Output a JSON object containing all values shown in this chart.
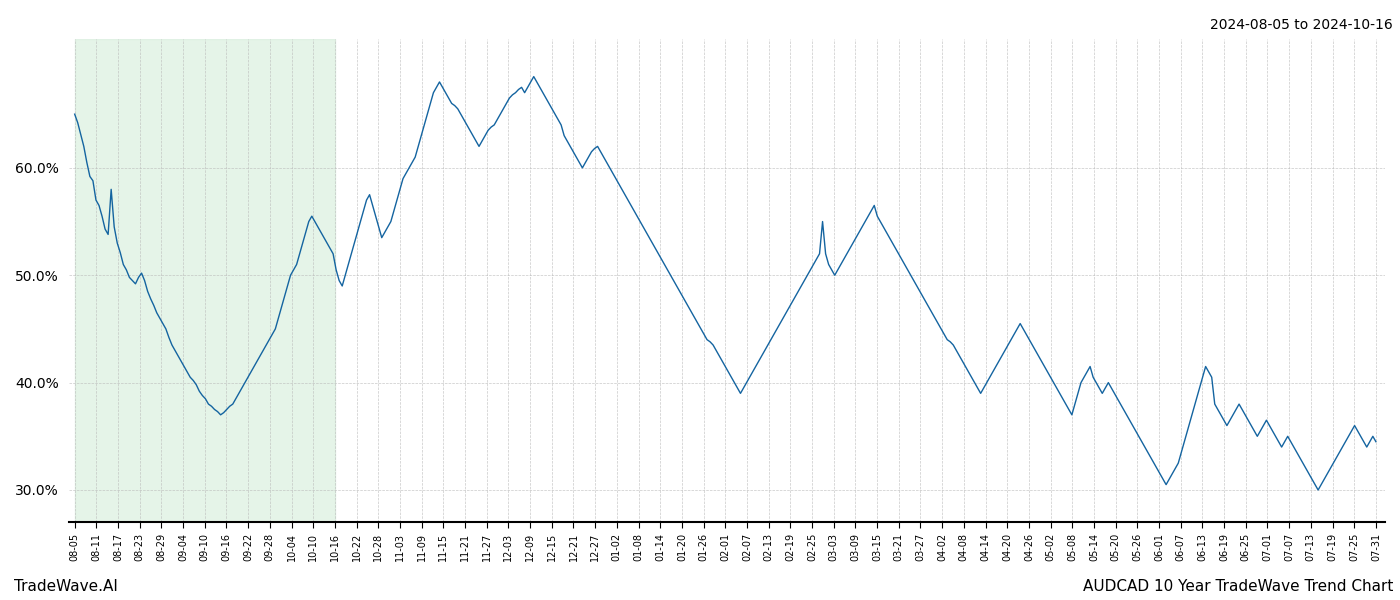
{
  "title_top_right": "2024-08-05 to 2024-10-16",
  "title_bottom_right": "AUDCAD 10 Year TradeWave Trend Chart",
  "title_bottom_left": "TradeWave.AI",
  "line_color": "#1464a0",
  "shade_color": "#d4edda",
  "shade_alpha": 0.6,
  "ylim": [
    27,
    72
  ],
  "yticks": [
    30.0,
    40.0,
    50.0,
    60.0
  ],
  "x_tick_labels": [
    "08-05",
    "08-11",
    "08-17",
    "08-23",
    "08-29",
    "09-04",
    "09-10",
    "09-16",
    "09-22",
    "09-28",
    "10-04",
    "10-10",
    "10-16",
    "10-22",
    "10-28",
    "11-03",
    "11-09",
    "11-15",
    "11-21",
    "11-27",
    "12-03",
    "12-09",
    "12-15",
    "12-21",
    "12-27",
    "01-02",
    "01-08",
    "01-14",
    "01-20",
    "01-26",
    "02-01",
    "02-07",
    "02-13",
    "02-19",
    "02-25",
    "03-03",
    "03-09",
    "03-15",
    "03-21",
    "03-27",
    "04-02",
    "04-08",
    "04-14",
    "04-20",
    "04-26",
    "05-02",
    "05-08",
    "05-14",
    "05-20",
    "05-26",
    "06-01",
    "06-07",
    "06-13",
    "06-19",
    "06-25",
    "07-01",
    "07-07",
    "07-13",
    "07-19",
    "07-25",
    "07-31"
  ],
  "shade_start_label": "08-05",
  "shade_end_label": "10-16",
  "values": [
    65.0,
    64.2,
    63.1,
    62.0,
    60.5,
    59.2,
    58.8,
    57.0,
    56.5,
    55.5,
    54.3,
    53.8,
    58.0,
    54.5,
    53.0,
    52.1,
    51.0,
    50.5,
    49.8,
    49.5,
    49.2,
    49.8,
    50.2,
    49.5,
    48.5,
    47.8,
    47.2,
    46.5,
    46.0,
    45.5,
    45.0,
    44.2,
    43.5,
    43.0,
    42.5,
    42.0,
    41.5,
    41.0,
    40.5,
    40.2,
    39.8,
    39.2,
    38.8,
    38.5,
    38.0,
    37.8,
    37.5,
    37.3,
    37.0,
    37.2,
    37.5,
    37.8,
    38.0,
    38.5,
    39.0,
    39.5,
    40.0,
    40.5,
    41.0,
    41.5,
    42.0,
    42.5,
    43.0,
    43.5,
    44.0,
    44.5,
    45.0,
    46.0,
    47.0,
    48.0,
    49.0,
    50.0,
    50.5,
    51.0,
    52.0,
    53.0,
    54.0,
    55.0,
    55.5,
    55.0,
    54.5,
    54.0,
    53.5,
    53.0,
    52.5,
    52.0,
    50.5,
    49.5,
    49.0,
    50.0,
    51.0,
    52.0,
    53.0,
    54.0,
    55.0,
    56.0,
    57.0,
    57.5,
    56.5,
    55.5,
    54.5,
    53.5,
    54.0,
    54.5,
    55.0,
    56.0,
    57.0,
    58.0,
    59.0,
    59.5,
    60.0,
    60.5,
    61.0,
    62.0,
    63.0,
    64.0,
    65.0,
    66.0,
    67.0,
    67.5,
    68.0,
    67.5,
    67.0,
    66.5,
    66.0,
    65.8,
    65.5,
    65.0,
    64.5,
    64.0,
    63.5,
    63.0,
    62.5,
    62.0,
    62.5,
    63.0,
    63.5,
    63.8,
    64.0,
    64.5,
    65.0,
    65.5,
    66.0,
    66.5,
    66.8,
    67.0,
    67.3,
    67.5,
    67.0,
    67.5,
    68.0,
    68.5,
    68.0,
    67.5,
    67.0,
    66.5,
    66.0,
    65.5,
    65.0,
    64.5,
    64.0,
    63.0,
    62.5,
    62.0,
    61.5,
    61.0,
    60.5,
    60.0,
    60.5,
    61.0,
    61.5,
    61.8,
    62.0,
    61.5,
    61.0,
    60.5,
    60.0,
    59.5,
    59.0,
    58.5,
    58.0,
    57.5,
    57.0,
    56.5,
    56.0,
    55.5,
    55.0,
    54.5,
    54.0,
    53.5,
    53.0,
    52.5,
    52.0,
    51.5,
    51.0,
    50.5,
    50.0,
    49.5,
    49.0,
    48.5,
    48.0,
    47.5,
    47.0,
    46.5,
    46.0,
    45.5,
    45.0,
    44.5,
    44.0,
    43.8,
    43.5,
    43.0,
    42.5,
    42.0,
    41.5,
    41.0,
    40.5,
    40.0,
    39.5,
    39.0,
    39.5,
    40.0,
    40.5,
    41.0,
    41.5,
    42.0,
    42.5,
    43.0,
    43.5,
    44.0,
    44.5,
    45.0,
    45.5,
    46.0,
    46.5,
    47.0,
    47.5,
    48.0,
    48.5,
    49.0,
    49.5,
    50.0,
    50.5,
    51.0,
    51.5,
    52.0,
    55.0,
    52.0,
    51.0,
    50.5,
    50.0,
    50.5,
    51.0,
    51.5,
    52.0,
    52.5,
    53.0,
    53.5,
    54.0,
    54.5,
    55.0,
    55.5,
    56.0,
    56.5,
    55.5,
    55.0,
    54.5,
    54.0,
    53.5,
    53.0,
    52.5,
    52.0,
    51.5,
    51.0,
    50.5,
    50.0,
    49.5,
    49.0,
    48.5,
    48.0,
    47.5,
    47.0,
    46.5,
    46.0,
    45.5,
    45.0,
    44.5,
    44.0,
    43.8,
    43.5,
    43.0,
    42.5,
    42.0,
    41.5,
    41.0,
    40.5,
    40.0,
    39.5,
    39.0,
    39.5,
    40.0,
    40.5,
    41.0,
    41.5,
    42.0,
    42.5,
    43.0,
    43.5,
    44.0,
    44.5,
    45.0,
    45.5,
    45.0,
    44.5,
    44.0,
    43.5,
    43.0,
    42.5,
    42.0,
    41.5,
    41.0,
    40.5,
    40.0,
    39.5,
    39.0,
    38.5,
    38.0,
    37.5,
    37.0,
    38.0,
    39.0,
    40.0,
    40.5,
    41.0,
    41.5,
    40.5,
    40.0,
    39.5,
    39.0,
    39.5,
    40.0,
    39.5,
    39.0,
    38.5,
    38.0,
    37.5,
    37.0,
    36.5,
    36.0,
    35.5,
    35.0,
    34.5,
    34.0,
    33.5,
    33.0,
    32.5,
    32.0,
    31.5,
    31.0,
    30.5,
    31.0,
    31.5,
    32.0,
    32.5,
    33.5,
    34.5,
    35.5,
    36.5,
    37.5,
    38.5,
    39.5,
    40.5,
    41.5,
    41.0,
    40.5,
    38.0,
    37.5,
    37.0,
    36.5,
    36.0,
    36.5,
    37.0,
    37.5,
    38.0,
    37.5,
    37.0,
    36.5,
    36.0,
    35.5,
    35.0,
    35.5,
    36.0,
    36.5,
    36.0,
    35.5,
    35.0,
    34.5,
    34.0,
    34.5,
    35.0,
    34.5,
    34.0,
    33.5,
    33.0,
    32.5,
    32.0,
    31.5,
    31.0,
    30.5,
    30.0,
    30.5,
    31.0,
    31.5,
    32.0,
    32.5,
    33.0,
    33.5,
    34.0,
    34.5,
    35.0,
    35.5,
    36.0,
    35.5,
    35.0,
    34.5,
    34.0,
    34.5,
    35.0,
    34.5
  ]
}
